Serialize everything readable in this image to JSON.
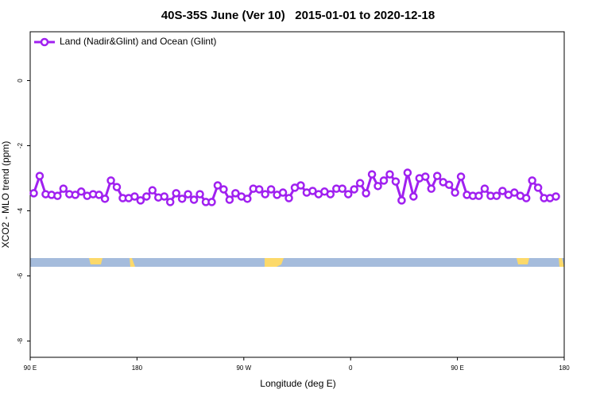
{
  "chart_data": {
    "type": "line",
    "title": "40S-35S June (Ver 10)   2015-01-01 to 2020-12-18",
    "x_label": "Longitude (deg E)",
    "y_label": "XCO2 - MLO trend (ppm)",
    "x": [
      93,
      98,
      103,
      108,
      113,
      118,
      123,
      128,
      133,
      138,
      143,
      148,
      153,
      158,
      163,
      168,
      173,
      178,
      183,
      188,
      193,
      198,
      203,
      208,
      213,
      218,
      223,
      228,
      233,
      238,
      243,
      248,
      253,
      258,
      263,
      268,
      273,
      278,
      283,
      288,
      293,
      298,
      303,
      308,
      313,
      318,
      323,
      328,
      333,
      338,
      343,
      348,
      353,
      358,
      363,
      368,
      373,
      378,
      383,
      388,
      393,
      398,
      403,
      408,
      413,
      418,
      423,
      428,
      433,
      438,
      443,
      448,
      453,
      458,
      463,
      468,
      473,
      478,
      483,
      488,
      493,
      498,
      503,
      508,
      513,
      518,
      523,
      528,
      533
    ],
    "series": [
      {
        "name": "Land (Nadir&Glint) and Ocean (Glint)",
        "color": "#a020f0",
        "values": [
          -3.46,
          -2.93,
          -3.49,
          -3.51,
          -3.54,
          -3.32,
          -3.49,
          -3.51,
          -3.41,
          -3.54,
          -3.49,
          -3.51,
          -3.63,
          -3.07,
          -3.27,
          -3.61,
          -3.61,
          -3.56,
          -3.68,
          -3.56,
          -3.37,
          -3.59,
          -3.56,
          -3.73,
          -3.46,
          -3.63,
          -3.49,
          -3.66,
          -3.49,
          -3.73,
          -3.73,
          -3.22,
          -3.34,
          -3.66,
          -3.46,
          -3.56,
          -3.63,
          -3.32,
          -3.34,
          -3.49,
          -3.34,
          -3.51,
          -3.44,
          -3.61,
          -3.29,
          -3.22,
          -3.44,
          -3.39,
          -3.49,
          -3.41,
          -3.49,
          -3.32,
          -3.32,
          -3.49,
          -3.34,
          -3.15,
          -3.46,
          -2.88,
          -3.24,
          -3.07,
          -2.88,
          -3.1,
          -3.68,
          -2.83,
          -3.56,
          -3.0,
          -2.95,
          -3.32,
          -2.93,
          -3.12,
          -3.2,
          -3.44,
          -2.95,
          -3.51,
          -3.54,
          -3.54,
          -3.32,
          -3.54,
          -3.54,
          -3.39,
          -3.51,
          -3.44,
          -3.54,
          -3.61,
          -3.07,
          -3.29,
          -3.61,
          -3.61,
          -3.56
        ]
      }
    ],
    "xlim": [
      90,
      540
    ],
    "xticks": [
      {
        "value": 90,
        "label": "90 E"
      },
      180,
      {
        "value": 270,
        "label": "90 W"
      },
      {
        "value": 360,
        "label": "0"
      },
      {
        "value": 450,
        "label": "90 E"
      },
      {
        "value": 540,
        "label": "180"
      }
    ],
    "ylim": [
      -8.5,
      1.5
    ],
    "yticks": [
      0,
      -2,
      -4,
      -6,
      -8
    ],
    "legend": "top-left"
  }
}
